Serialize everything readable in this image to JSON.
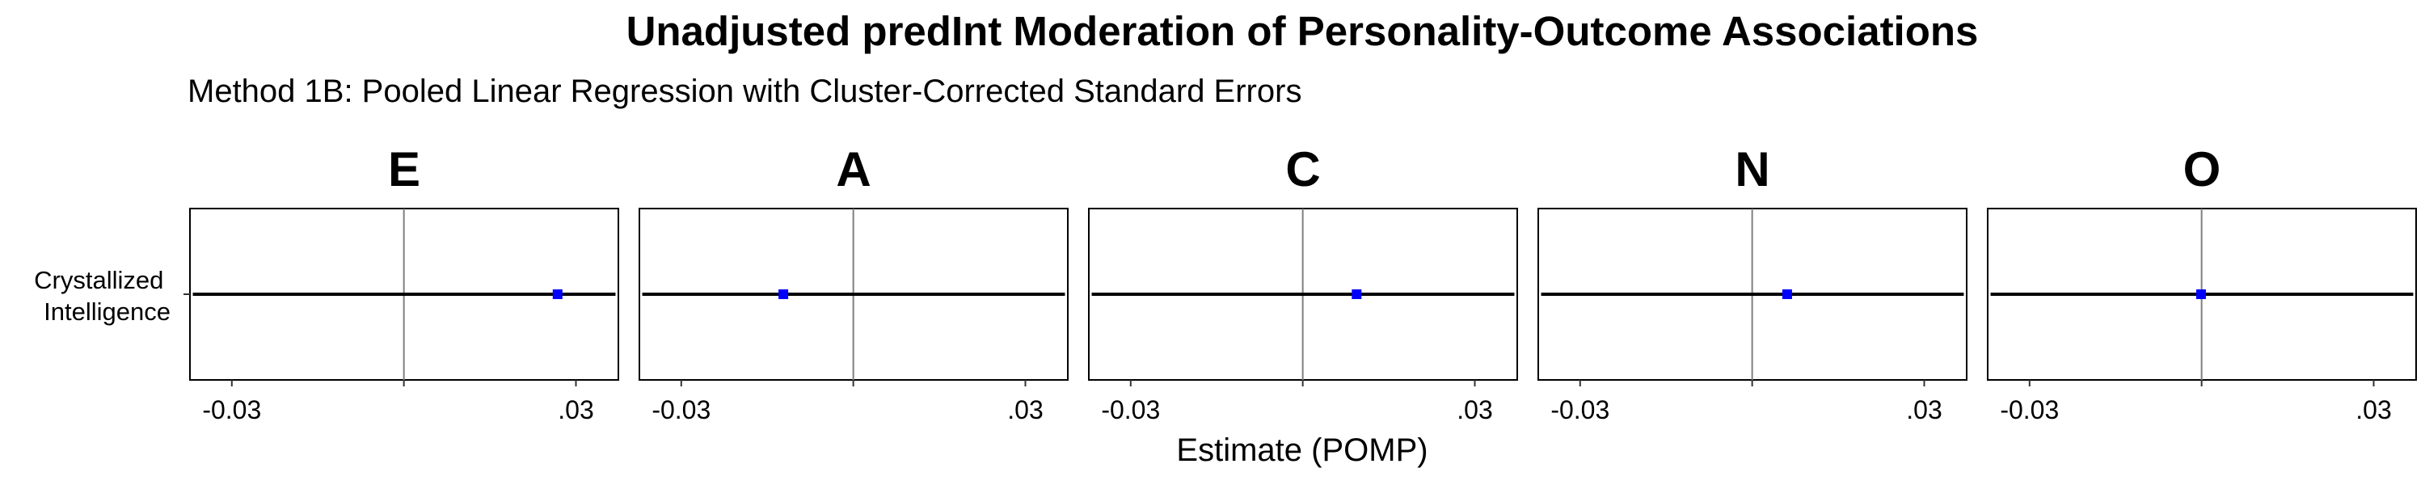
{
  "chart_data": {
    "type": "forest",
    "title": "Unadjusted predInt Moderation of Personality-Outcome Associations",
    "subtitle": "Method 1B: Pooled Linear Regression with Cluster-Corrected Standard Errors",
    "xlabel": "Estimate (POMP)",
    "y_category": "Crystallized Intelligence",
    "y_category_lines": [
      "Crystallized",
      "Intelligence"
    ],
    "xlim": [
      -0.0373,
      0.0374
    ],
    "x_ticks": [
      -0.03,
      0.0,
      0.03
    ],
    "x_tick_labels": [
      "-0.03",
      "",
      ".03"
    ],
    "reference_line": 0,
    "panels": [
      {
        "facet": "E",
        "estimate": 0.0268,
        "ci_low": -0.0368,
        "ci_high": 0.0369
      },
      {
        "facet": "A",
        "estimate": -0.0122,
        "ci_low": -0.0368,
        "ci_high": 0.0369
      },
      {
        "facet": "C",
        "estimate": 0.0094,
        "ci_low": -0.0368,
        "ci_high": 0.0369
      },
      {
        "facet": "N",
        "estimate": 0.0061,
        "ci_low": -0.0368,
        "ci_high": 0.0369
      },
      {
        "facet": "O",
        "estimate": -0.0001,
        "ci_low": -0.0368,
        "ci_high": 0.0369
      }
    ],
    "colors": {
      "point": "#0000ff",
      "interval": "#000000",
      "reference": "#7f7f7f",
      "frame": "#000000"
    }
  }
}
